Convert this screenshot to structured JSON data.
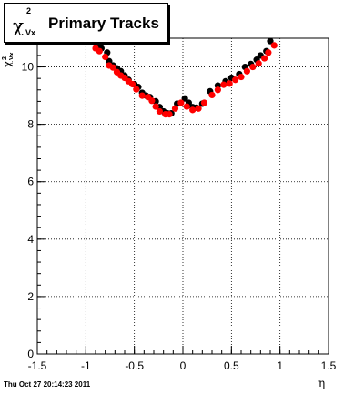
{
  "title": {
    "symbol": "χ",
    "superscript": "2",
    "subscript": "Vx",
    "text": "Primary Tracks"
  },
  "footer": "Thu Oct 27 20:14:23 2011",
  "chart_data": {
    "type": "scatter",
    "title": "χ²_Vx Primary Tracks",
    "xlabel": "η",
    "ylabel": "χ²_Vx",
    "xlim": [
      -1.5,
      1.5
    ],
    "ylim": [
      0,
      11
    ],
    "xticks": [
      "-1.5",
      "-1",
      "-0.5",
      "0",
      "0.5",
      "1",
      "1.5"
    ],
    "yticks": [
      "0",
      "2",
      "4",
      "6",
      "8",
      "10"
    ],
    "grid": true,
    "series": [
      {
        "color": "#000000",
        "points": [
          [
            -0.92,
            10.95
          ],
          [
            -0.88,
            10.75
          ],
          [
            -0.84,
            10.65
          ],
          [
            -0.78,
            10.5
          ],
          [
            -0.76,
            10.2
          ],
          [
            -0.72,
            10.05
          ],
          [
            -0.68,
            9.95
          ],
          [
            -0.64,
            9.85
          ],
          [
            -0.6,
            9.7
          ],
          [
            -0.56,
            9.55
          ],
          [
            -0.5,
            9.4
          ],
          [
            -0.46,
            9.3
          ],
          [
            -0.42,
            9.1
          ],
          [
            -0.38,
            9.0
          ],
          [
            -0.34,
            8.95
          ],
          [
            -0.28,
            8.8
          ],
          [
            -0.24,
            8.6
          ],
          [
            -0.2,
            8.45
          ],
          [
            -0.16,
            8.38
          ],
          [
            -0.12,
            8.38
          ],
          [
            -0.06,
            8.72
          ],
          [
            0.02,
            8.9
          ],
          [
            0.06,
            8.75
          ],
          [
            0.1,
            8.6
          ],
          [
            0.14,
            8.58
          ],
          [
            0.2,
            8.72
          ],
          [
            0.28,
            9.15
          ],
          [
            0.36,
            9.35
          ],
          [
            0.44,
            9.5
          ],
          [
            0.5,
            9.62
          ],
          [
            0.58,
            9.75
          ],
          [
            0.64,
            10.0
          ],
          [
            0.7,
            10.1
          ],
          [
            0.76,
            10.25
          ],
          [
            0.8,
            10.4
          ],
          [
            0.86,
            10.55
          ],
          [
            0.9,
            10.9
          ]
        ]
      },
      {
        "color": "#ff0000",
        "points": [
          [
            -0.9,
            10.65
          ],
          [
            -0.86,
            10.55
          ],
          [
            -0.8,
            10.35
          ],
          [
            -0.76,
            10.05
          ],
          [
            -0.72,
            9.98
          ],
          [
            -0.68,
            9.82
          ],
          [
            -0.64,
            9.7
          ],
          [
            -0.6,
            9.62
          ],
          [
            -0.56,
            9.5
          ],
          [
            -0.52,
            9.4
          ],
          [
            -0.48,
            9.22
          ],
          [
            -0.42,
            9.0
          ],
          [
            -0.36,
            8.95
          ],
          [
            -0.32,
            8.82
          ],
          [
            -0.28,
            8.62
          ],
          [
            -0.24,
            8.45
          ],
          [
            -0.18,
            8.35
          ],
          [
            -0.14,
            8.35
          ],
          [
            -0.08,
            8.55
          ],
          [
            -0.02,
            8.75
          ],
          [
            0.04,
            8.62
          ],
          [
            0.1,
            8.5
          ],
          [
            0.16,
            8.55
          ],
          [
            0.22,
            8.75
          ],
          [
            0.3,
            9.02
          ],
          [
            0.36,
            9.2
          ],
          [
            0.42,
            9.38
          ],
          [
            0.48,
            9.42
          ],
          [
            0.54,
            9.55
          ],
          [
            0.6,
            9.65
          ],
          [
            0.66,
            9.85
          ],
          [
            0.72,
            10.0
          ],
          [
            0.78,
            10.12
          ],
          [
            0.84,
            10.3
          ],
          [
            0.88,
            10.5
          ],
          [
            0.94,
            10.75
          ]
        ]
      }
    ]
  }
}
